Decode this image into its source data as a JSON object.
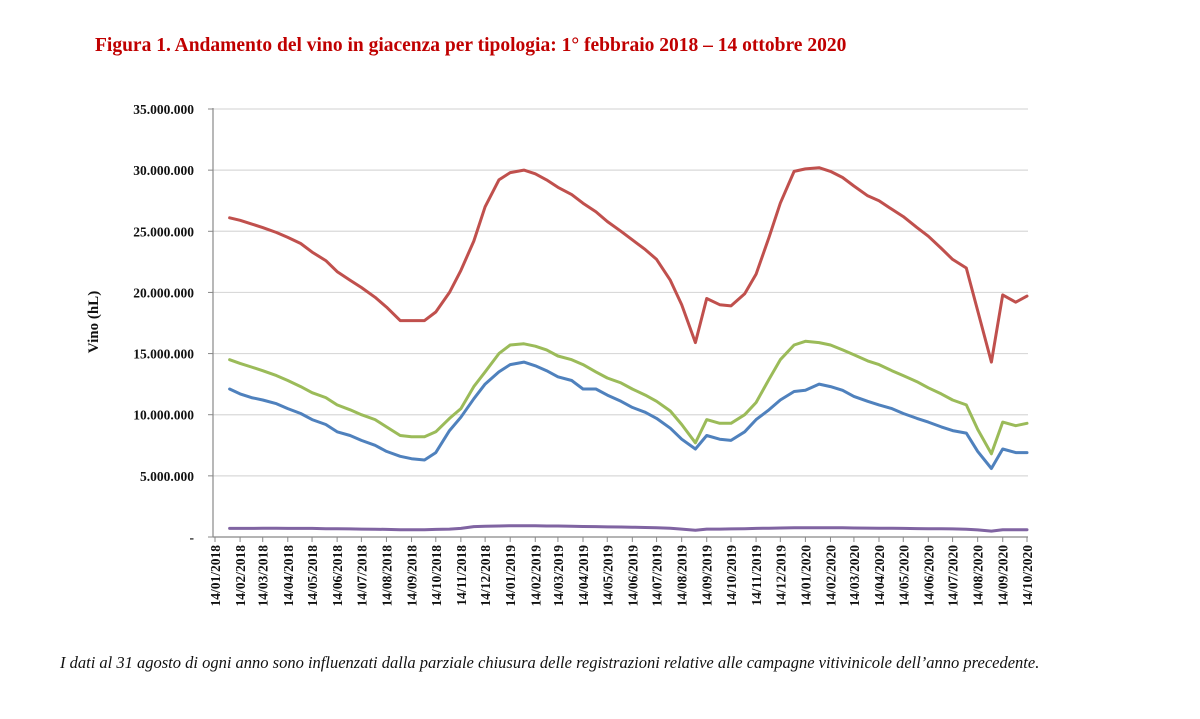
{
  "title": "Figura 1. Andamento del vino in giacenza per tipologia: 1° febbraio 2018 – 14 ottobre 2020",
  "footnote": "I dati al 31 agosto di ogni anno sono influenzati dalla parziale chiusura delle registrazioni relative alle campagne vitivinicole dell’anno precedente.",
  "chart_data": {
    "type": "line",
    "title": "Figura 1. Andamento del vino in giacenza per tipologia: 1° febbraio 2018 – 14 ottobre 2020",
    "xlabel": "",
    "ylabel": "Vino (hL)",
    "ylim": [
      0,
      35000000
    ],
    "y_ticks": [
      0,
      5000000,
      10000000,
      15000000,
      20000000,
      25000000,
      30000000,
      35000000
    ],
    "y_tick_labels": [
      "-",
      "5.000.000",
      "10.000.000",
      "15.000.000",
      "20.000.000",
      "25.000.000",
      "30.000.000",
      "35.000.000"
    ],
    "xlim": [
      "2018-01-14",
      "2020-10-14"
    ],
    "x_tick_labels": [
      "14/01/2018",
      "14/02/2018",
      "14/03/2018",
      "14/04/2018",
      "14/05/2018",
      "14/06/2018",
      "14/07/2018",
      "14/08/2018",
      "14/09/2018",
      "14/10/2018",
      "14/11/2018",
      "14/12/2018",
      "14/01/2019",
      "14/02/2019",
      "14/03/2019",
      "14/04/2019",
      "14/05/2019",
      "14/06/2019",
      "14/07/2019",
      "14/08/2019",
      "14/09/2019",
      "14/10/2019",
      "14/11/2019",
      "14/12/2019",
      "14/01/2020",
      "14/02/2020",
      "14/03/2020",
      "14/04/2020",
      "14/05/2020",
      "14/06/2020",
      "14/07/2020",
      "14/08/2020",
      "14/09/2020",
      "14/10/2020"
    ],
    "grid": "horizontal",
    "legend": "none",
    "x": [
      "2018-02-01",
      "2018-02-14",
      "2018-02-28",
      "2018-03-14",
      "2018-03-31",
      "2018-04-14",
      "2018-04-30",
      "2018-05-14",
      "2018-05-31",
      "2018-06-14",
      "2018-06-30",
      "2018-07-14",
      "2018-07-31",
      "2018-08-14",
      "2018-08-31",
      "2018-09-14",
      "2018-09-30",
      "2018-10-14",
      "2018-10-31",
      "2018-11-14",
      "2018-11-30",
      "2018-12-14",
      "2018-12-31",
      "2019-01-14",
      "2019-01-31",
      "2019-02-14",
      "2019-02-28",
      "2019-03-14",
      "2019-03-31",
      "2019-04-14",
      "2019-04-30",
      "2019-05-14",
      "2019-05-31",
      "2019-06-14",
      "2019-06-30",
      "2019-07-14",
      "2019-07-31",
      "2019-08-14",
      "2019-08-31",
      "2019-09-14",
      "2019-09-30",
      "2019-10-14",
      "2019-10-31",
      "2019-11-14",
      "2019-11-30",
      "2019-12-14",
      "2019-12-31",
      "2020-01-14",
      "2020-01-31",
      "2020-02-14",
      "2020-02-29",
      "2020-03-14",
      "2020-03-31",
      "2020-04-14",
      "2020-04-30",
      "2020-05-14",
      "2020-05-31",
      "2020-06-14",
      "2020-06-30",
      "2020-07-14",
      "2020-07-31",
      "2020-08-14",
      "2020-08-31",
      "2020-09-14",
      "2020-09-30",
      "2020-10-14"
    ],
    "series": [
      {
        "color": "#C0504D",
        "values": [
          26100000,
          25900000,
          25600000,
          25300000,
          24900000,
          24500000,
          24000000,
          23300000,
          22600000,
          21700000,
          21000000,
          20400000,
          19600000,
          18800000,
          17700000,
          17700000,
          17700000,
          18400000,
          20000000,
          21800000,
          24200000,
          27000000,
          29200000,
          29800000,
          30000000,
          29700000,
          29200000,
          28600000,
          28000000,
          27300000,
          26600000,
          25800000,
          25000000,
          24300000,
          23500000,
          22700000,
          21000000,
          19000000,
          15900000,
          19500000,
          19000000,
          18900000,
          19900000,
          21500000,
          24500000,
          27300000,
          29900000,
          30100000,
          30200000,
          29900000,
          29400000,
          28700000,
          27900000,
          27500000,
          26800000,
          26200000,
          25300000,
          24600000,
          23600000,
          22700000,
          22000000,
          18500000,
          14300000,
          19800000,
          19200000,
          19700000
        ]
      },
      {
        "color": "#9BBB59",
        "values": [
          14500000,
          14200000,
          13900000,
          13600000,
          13200000,
          12800000,
          12300000,
          11800000,
          11400000,
          10800000,
          10400000,
          10000000,
          9600000,
          9000000,
          8300000,
          8200000,
          8200000,
          8600000,
          9700000,
          10500000,
          12300000,
          13500000,
          15000000,
          15700000,
          15800000,
          15600000,
          15300000,
          14800000,
          14500000,
          14100000,
          13500000,
          13000000,
          12600000,
          12100000,
          11600000,
          11100000,
          10300000,
          9200000,
          7700000,
          9600000,
          9300000,
          9300000,
          10000000,
          11000000,
          12900000,
          14500000,
          15700000,
          16000000,
          15900000,
          15700000,
          15300000,
          14900000,
          14400000,
          14100000,
          13600000,
          13200000,
          12700000,
          12200000,
          11700000,
          11200000,
          10800000,
          8800000,
          6800000,
          9400000,
          9100000,
          9300000
        ]
      },
      {
        "color": "#4F81BD",
        "values": [
          12100000,
          11700000,
          11400000,
          11200000,
          10900000,
          10500000,
          10100000,
          9600000,
          9200000,
          8600000,
          8300000,
          7900000,
          7500000,
          7000000,
          6600000,
          6400000,
          6300000,
          6900000,
          8700000,
          9800000,
          11300000,
          12500000,
          13500000,
          14100000,
          14300000,
          14000000,
          13600000,
          13100000,
          12800000,
          12100000,
          12100000,
          11600000,
          11100000,
          10600000,
          10200000,
          9700000,
          8900000,
          8000000,
          7200000,
          8300000,
          8000000,
          7900000,
          8600000,
          9600000,
          10400000,
          11200000,
          11900000,
          12000000,
          12500000,
          12300000,
          12000000,
          11500000,
          11100000,
          10800000,
          10500000,
          10100000,
          9700000,
          9400000,
          9000000,
          8700000,
          8500000,
          7000000,
          5600000,
          7200000,
          6900000,
          6900000
        ]
      },
      {
        "color": "#8064A2",
        "values": [
          700000,
          700000,
          700000,
          720000,
          720000,
          700000,
          700000,
          700000,
          680000,
          680000,
          660000,
          650000,
          640000,
          620000,
          600000,
          600000,
          600000,
          620000,
          650000,
          700000,
          850000,
          880000,
          900000,
          920000,
          920000,
          920000,
          900000,
          900000,
          880000,
          860000,
          850000,
          830000,
          820000,
          800000,
          780000,
          760000,
          720000,
          650000,
          550000,
          650000,
          650000,
          660000,
          680000,
          700000,
          720000,
          740000,
          750000,
          750000,
          750000,
          750000,
          750000,
          740000,
          730000,
          720000,
          710000,
          700000,
          690000,
          680000,
          670000,
          660000,
          640000,
          580000,
          480000,
          600000,
          600000,
          600000
        ]
      }
    ]
  }
}
